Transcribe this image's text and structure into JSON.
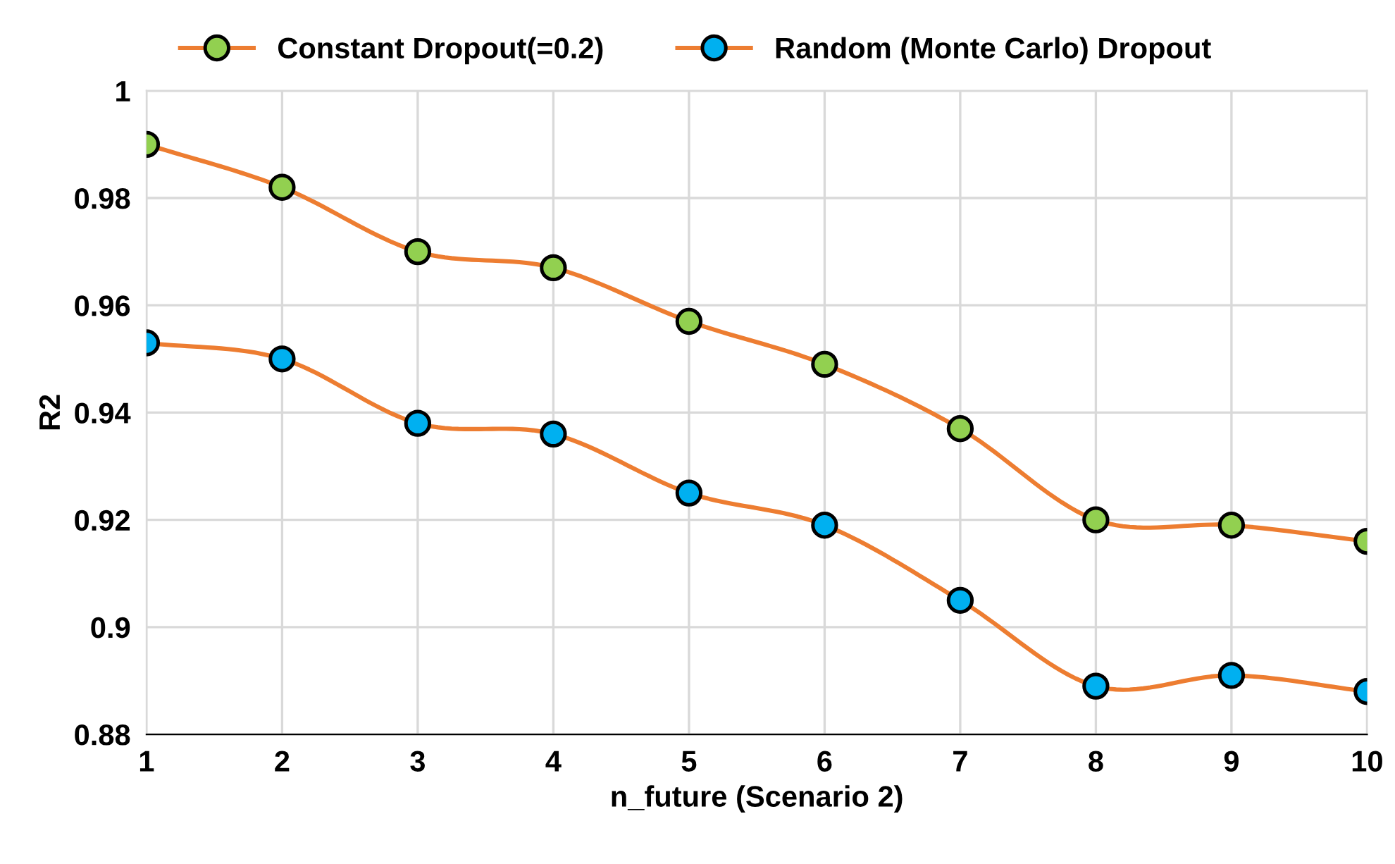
{
  "chart_data": {
    "type": "line",
    "xlabel": "n_future (Scenario 2)",
    "ylabel": "R2",
    "x": [
      1,
      2,
      3,
      4,
      5,
      6,
      7,
      8,
      9,
      10
    ],
    "color": "#ed7d31",
    "series": [
      {
        "name": "Constant Dropout(=0.2)",
        "color": "#92d050",
        "values": [
          0.99,
          0.982,
          0.97,
          0.967,
          0.957,
          0.949,
          0.937,
          0.92,
          0.919,
          0.916
        ]
      },
      {
        "name": "Random (Monte Carlo) Dropout",
        "color": "#00b0f0",
        "values": [
          0.953,
          0.95,
          0.938,
          0.936,
          0.925,
          0.919,
          0.905,
          0.889,
          0.891,
          0.888
        ]
      }
    ],
    "xlim": [
      1,
      10
    ],
    "xticks": [
      1,
      2,
      3,
      4,
      5,
      6,
      7,
      8,
      9,
      10
    ],
    "ylim": [
      0.88,
      1
    ],
    "yticks": [
      0.88,
      0.9,
      0.92,
      0.94,
      0.96,
      0.98,
      1
    ],
    "grid": true,
    "legend": "top",
    "marker": "circle",
    "line_style": "solid"
  }
}
